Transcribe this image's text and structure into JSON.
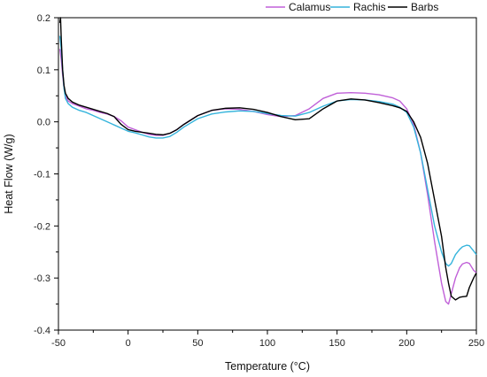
{
  "chart_data": {
    "type": "line",
    "xlabel": "Temperature (°C)",
    "ylabel": "Heat Flow (W/g)",
    "xlim": [
      -50,
      250
    ],
    "ylim": [
      -0.4,
      0.2
    ],
    "xticks": [
      -50,
      0,
      50,
      100,
      150,
      200,
      250
    ],
    "yticks": [
      -0.4,
      -0.3,
      -0.2,
      -0.1,
      0.0,
      0.1,
      0.2
    ],
    "xtick_labels": [
      "-50",
      "0",
      "50",
      "100",
      "150",
      "200",
      "250"
    ],
    "ytick_labels": [
      "-0.4",
      "-0.3",
      "-0.2",
      "-0.1",
      "0.0",
      "0.1",
      "0.2"
    ],
    "grid": false,
    "legend_position": "top-right",
    "series": [
      {
        "name": "Calamus",
        "color": "#c060d8",
        "x": [
          -49,
          -48,
          -47,
          -46,
          -45,
          -43,
          -40,
          -35,
          -30,
          -25,
          -20,
          -15,
          -10,
          -5,
          0,
          5,
          10,
          15,
          20,
          25,
          30,
          35,
          40,
          50,
          60,
          70,
          80,
          90,
          100,
          110,
          120,
          130,
          140,
          150,
          160,
          170,
          180,
          190,
          195,
          200,
          205,
          210,
          215,
          220,
          225,
          228,
          230,
          232,
          235,
          238,
          240,
          243,
          245,
          248,
          250
        ],
        "y": [
          0.14,
          0.12,
          0.09,
          0.065,
          0.05,
          0.04,
          0.035,
          0.03,
          0.025,
          0.022,
          0.018,
          0.015,
          0.01,
          0.002,
          -0.01,
          -0.015,
          -0.02,
          -0.024,
          -0.026,
          -0.026,
          -0.022,
          -0.015,
          -0.005,
          0.012,
          0.022,
          0.025,
          0.024,
          0.02,
          0.014,
          0.01,
          0.012,
          0.025,
          0.045,
          0.055,
          0.056,
          0.055,
          0.052,
          0.046,
          0.04,
          0.025,
          -0.005,
          -0.06,
          -0.14,
          -0.23,
          -0.31,
          -0.345,
          -0.35,
          -0.33,
          -0.3,
          -0.28,
          -0.273,
          -0.27,
          -0.272,
          -0.285,
          -0.29
        ]
      },
      {
        "name": "Rachis",
        "color": "#35b4dc",
        "x": [
          -49,
          -48,
          -47,
          -46,
          -45,
          -43,
          -40,
          -35,
          -30,
          -25,
          -20,
          -15,
          -10,
          -5,
          0,
          5,
          10,
          15,
          20,
          25,
          30,
          35,
          40,
          50,
          60,
          70,
          80,
          90,
          100,
          110,
          120,
          130,
          140,
          150,
          160,
          170,
          180,
          190,
          195,
          200,
          205,
          210,
          215,
          220,
          225,
          228,
          230,
          232,
          235,
          238,
          240,
          243,
          245,
          248,
          250
        ],
        "y": [
          0.165,
          0.14,
          0.1,
          0.065,
          0.045,
          0.035,
          0.028,
          0.022,
          0.018,
          0.012,
          0.006,
          0.0,
          -0.006,
          -0.012,
          -0.018,
          -0.021,
          -0.025,
          -0.029,
          -0.031,
          -0.031,
          -0.028,
          -0.02,
          -0.01,
          0.006,
          0.015,
          0.019,
          0.021,
          0.02,
          0.016,
          0.012,
          0.011,
          0.018,
          0.03,
          0.04,
          0.043,
          0.042,
          0.039,
          0.034,
          0.028,
          0.018,
          -0.01,
          -0.06,
          -0.13,
          -0.2,
          -0.25,
          -0.272,
          -0.277,
          -0.272,
          -0.255,
          -0.245,
          -0.24,
          -0.237,
          -0.238,
          -0.248,
          -0.255
        ]
      },
      {
        "name": "Barbs",
        "color": "#000000",
        "x": [
          -49,
          -48.5,
          -48,
          -47,
          -46,
          -45,
          -43,
          -40,
          -35,
          -30,
          -25,
          -20,
          -15,
          -10,
          -5,
          0,
          5,
          10,
          15,
          20,
          25,
          30,
          35,
          40,
          50,
          60,
          70,
          80,
          90,
          100,
          110,
          120,
          130,
          140,
          150,
          160,
          170,
          180,
          190,
          195,
          200,
          205,
          210,
          215,
          220,
          225,
          228,
          230,
          232,
          235,
          238,
          240,
          243,
          245,
          248,
          250
        ],
        "y": [
          0.19,
          0.2,
          0.16,
          0.1,
          0.07,
          0.055,
          0.045,
          0.038,
          0.032,
          0.028,
          0.024,
          0.02,
          0.016,
          0.01,
          -0.005,
          -0.015,
          -0.018,
          -0.02,
          -0.022,
          -0.024,
          -0.025,
          -0.022,
          -0.015,
          -0.005,
          0.012,
          0.022,
          0.026,
          0.027,
          0.024,
          0.018,
          0.01,
          0.004,
          0.006,
          0.025,
          0.04,
          0.044,
          0.042,
          0.037,
          0.031,
          0.027,
          0.02,
          0.0,
          -0.03,
          -0.08,
          -0.15,
          -0.22,
          -0.28,
          -0.31,
          -0.335,
          -0.342,
          -0.337,
          -0.336,
          -0.335,
          -0.318,
          -0.3,
          -0.29
        ]
      }
    ]
  }
}
